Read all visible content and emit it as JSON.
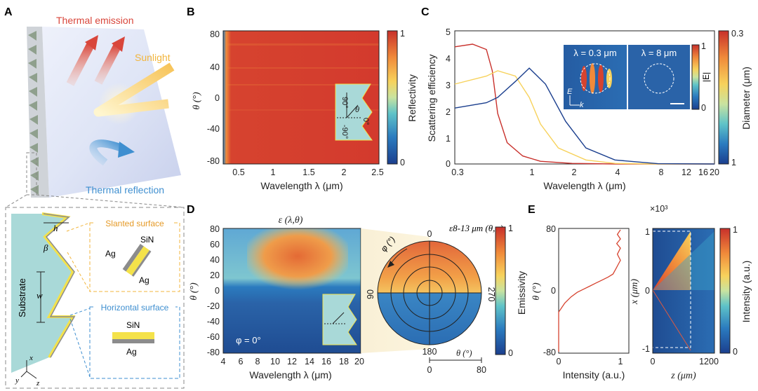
{
  "panels": {
    "A": {
      "letter": "A",
      "thermal_emission": "Thermal emission",
      "sunlight": "Sunlight",
      "thermal_reflection": "Thermal reflection",
      "zoom": {
        "h": "h",
        "beta": "β",
        "w": "w",
        "substrate": "Substrate",
        "slanted_surface": "Slanted surface",
        "horizontal_surface": "Horizontal surface",
        "ag_1": "Ag",
        "sin_1": "SiN",
        "ag_2": "Ag",
        "sin_2": "SiN",
        "ag_3": "Ag",
        "axis_x": "x",
        "axis_y": "y",
        "axis_z": "z"
      },
      "colors": {
        "emission": "#d9463b",
        "sunlight": "#f2b53c",
        "reflection": "#3f8fd0",
        "ag": "#8c8c8c",
        "sin": "#f4e24a",
        "substrate": "#a9d9d8"
      }
    },
    "B": {
      "letter": "B",
      "ylabel": "θ (°)",
      "xlabel": "Wavelength λ (μm)",
      "yticks": [
        "80",
        "40",
        "0",
        "-40",
        "-80"
      ],
      "xticks": [
        "0.5",
        "1",
        "1.5",
        "2",
        "2.5"
      ],
      "colorbar_label": "Reflectivity",
      "cb_max": "1",
      "cb_min": "0",
      "inset": {
        "a90": "90°",
        "aneg90": "-90°",
        "a0": "0°",
        "theta": "θ"
      }
    },
    "C": {
      "letter": "C",
      "ylabel": "Scattering efficiency",
      "xlabel": "Wavelength λ (μm)",
      "yticks": [
        "5",
        "4",
        "3",
        "2",
        "1",
        "0"
      ],
      "xticks": [
        "0.3",
        "1",
        "2",
        "4",
        "8",
        "12",
        "16",
        "20"
      ],
      "inset_left_title": "λ = 0.3 μm",
      "inset_right_title": "λ = 8 μm",
      "inset_e": "E",
      "inset_k": "k",
      "field_cb_label": "|E|",
      "field_cb_max": "1",
      "field_cb_min": "0",
      "diam_cb_label": "Diameter (μm)",
      "diam_cb_max": "0.3",
      "diam_cb_min": "1"
    },
    "D": {
      "letter": "D",
      "map_title": "ε (λ,θ)",
      "ylabel": "θ (°)",
      "xlabel": "Wavelength λ (μm)",
      "yticks": [
        "80",
        "60",
        "40",
        "20",
        "0",
        "-20",
        "-40",
        "-60",
        "-80"
      ],
      "xticks": [
        "4",
        "6",
        "8",
        "10",
        "12",
        "14",
        "16",
        "18",
        "20"
      ],
      "phi_label": "φ = 0°",
      "polar_title": "ε8-13 μm (θ,φ)",
      "polar_0": "0",
      "polar_90": "90",
      "polar_180": "180",
      "polar_270": "270",
      "polar_phi": "φ (°)",
      "polar_theta": "θ (°)",
      "polar_t0": "0",
      "polar_t80": "80",
      "colorbar_label": "Emissivity",
      "cb_max": "1",
      "cb_min": "0"
    },
    "E": {
      "letter": "E",
      "left_ylabel": "θ (°)",
      "left_xlabel": "Intensity (a.u.)",
      "left_yticks": [
        "80",
        "0",
        "-80"
      ],
      "left_xticks": [
        "0",
        "1"
      ],
      "right_multiplier": "×10³",
      "right_ylabel": "x (μm)",
      "right_xlabel": "z (μm)",
      "right_yticks": [
        "1",
        "0",
        "-1"
      ],
      "right_xticks": [
        "0",
        "1200"
      ],
      "colorbar_label": "Intensity (a.u.)",
      "cb_max": "1",
      "cb_min": "0"
    }
  },
  "chart_data": [
    {
      "panel": "C",
      "type": "line",
      "title": "",
      "xlabel": "Wavelength λ (μm)",
      "ylabel": "Scattering efficiency",
      "xscale": "log",
      "xlim": [
        0.3,
        20
      ],
      "ylim": [
        0,
        5
      ],
      "series_param": "Diameter (μm)",
      "series": [
        {
          "name": "0.3",
          "values_x": [
            0.3,
            0.4,
            0.5,
            0.55,
            0.6,
            0.7,
            0.9,
            1.2,
            2,
            4,
            8,
            20
          ],
          "values_y": [
            4.4,
            4.5,
            4.3,
            3.5,
            1.9,
            0.8,
            0.3,
            0.1,
            0.02,
            0,
            0,
            0
          ]
        },
        {
          "name": "0.65",
          "values_x": [
            0.3,
            0.5,
            0.6,
            0.8,
            1,
            1.2,
            1.6,
            2.5,
            4,
            8,
            20
          ],
          "values_y": [
            3.0,
            3.3,
            3.5,
            3.3,
            2.5,
            1.5,
            0.6,
            0.15,
            0.02,
            0,
            0
          ]
        },
        {
          "name": "1",
          "values_x": [
            0.3,
            0.5,
            0.6,
            0.8,
            1,
            1.3,
            1.8,
            2.5,
            4,
            8,
            20
          ],
          "values_y": [
            2.1,
            2.3,
            2.5,
            3.1,
            3.6,
            3.0,
            1.6,
            0.6,
            0.15,
            0.01,
            0
          ]
        }
      ]
    },
    {
      "panel": "E-left",
      "type": "line",
      "xlabel": "Intensity (a.u.)",
      "ylabel": "θ (°)",
      "xlim": [
        0,
        1
      ],
      "ylim": [
        -80,
        80
      ],
      "x": [
        0,
        0,
        0.05,
        0.1,
        0.2,
        0.3,
        0.4,
        0.5,
        0.6,
        0.7,
        0.8,
        0.88,
        0.92,
        0.96,
        1.0,
        0.95,
        1.0,
        0.94,
        1.0,
        0.95,
        1.0
      ],
      "y": [
        -80,
        -28,
        -22,
        -16,
        -8,
        -2,
        2,
        6,
        10,
        14,
        18,
        22,
        28,
        34,
        40,
        48,
        56,
        62,
        68,
        74,
        80
      ]
    }
  ]
}
